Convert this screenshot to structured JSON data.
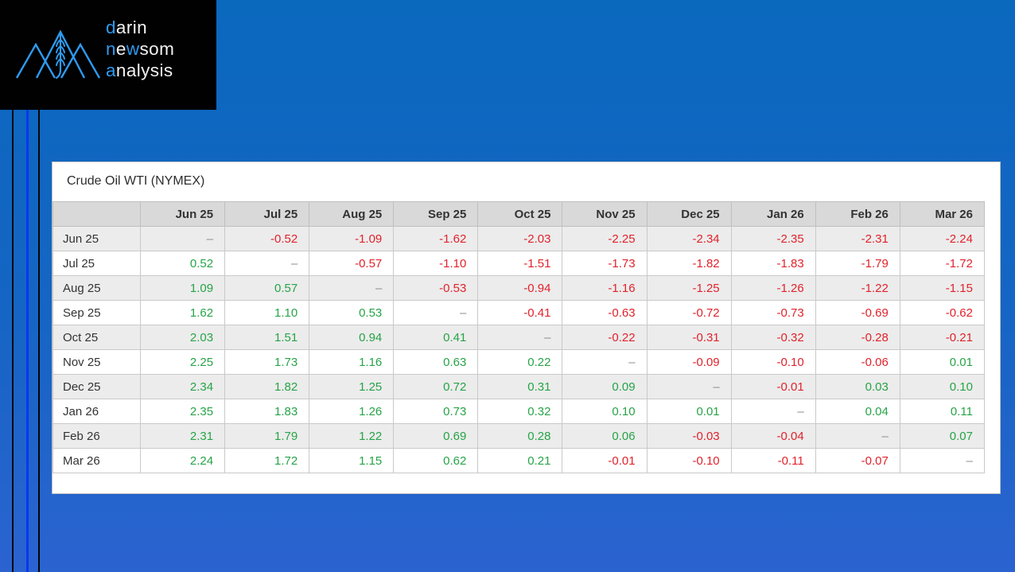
{
  "logo": {
    "line1": {
      "accent": "d",
      "rest": "arin"
    },
    "line2": {
      "p1": "n",
      "p2": "e",
      "p3": "w",
      "p4": "som"
    },
    "line3": {
      "accent": "a",
      "rest": "nalysis"
    }
  },
  "colors": {
    "logo_accent_blue": "#2e9bf1",
    "stripe_bright_blue": "#0838ef",
    "background_top": "#0a68bd",
    "background_bottom": "#2b63d0",
    "positive_value": "#26a447",
    "negative_value": "#e1222b",
    "dash_value": "#8c8c8c",
    "header_bg": "#d9d9d9",
    "alt_row_bg": "#ececec"
  },
  "table": {
    "title": "Crude Oil WTI (NYMEX)",
    "columns": [
      "Jun 25",
      "Jul 25",
      "Aug 25",
      "Sep 25",
      "Oct 25",
      "Nov 25",
      "Dec 25",
      "Jan 26",
      "Feb 26",
      "Mar 26"
    ],
    "rows": [
      {
        "label": "Jun 25",
        "values": [
          "–",
          "-0.52",
          "-1.09",
          "-1.62",
          "-2.03",
          "-2.25",
          "-2.34",
          "-2.35",
          "-2.31",
          "-2.24"
        ]
      },
      {
        "label": "Jul 25",
        "values": [
          "0.52",
          "–",
          "-0.57",
          "-1.10",
          "-1.51",
          "-1.73",
          "-1.82",
          "-1.83",
          "-1.79",
          "-1.72"
        ]
      },
      {
        "label": "Aug 25",
        "values": [
          "1.09",
          "0.57",
          "–",
          "-0.53",
          "-0.94",
          "-1.16",
          "-1.25",
          "-1.26",
          "-1.22",
          "-1.15"
        ]
      },
      {
        "label": "Sep 25",
        "values": [
          "1.62",
          "1.10",
          "0.53",
          "–",
          "-0.41",
          "-0.63",
          "-0.72",
          "-0.73",
          "-0.69",
          "-0.62"
        ]
      },
      {
        "label": "Oct 25",
        "values": [
          "2.03",
          "1.51",
          "0.94",
          "0.41",
          "–",
          "-0.22",
          "-0.31",
          "-0.32",
          "-0.28",
          "-0.21"
        ]
      },
      {
        "label": "Nov 25",
        "values": [
          "2.25",
          "1.73",
          "1.16",
          "0.63",
          "0.22",
          "–",
          "-0.09",
          "-0.10",
          "-0.06",
          "0.01"
        ]
      },
      {
        "label": "Dec 25",
        "values": [
          "2.34",
          "1.82",
          "1.25",
          "0.72",
          "0.31",
          "0.09",
          "–",
          "-0.01",
          "0.03",
          "0.10"
        ]
      },
      {
        "label": "Jan 26",
        "values": [
          "2.35",
          "1.83",
          "1.26",
          "0.73",
          "0.32",
          "0.10",
          "0.01",
          "–",
          "0.04",
          "0.11"
        ]
      },
      {
        "label": "Feb 26",
        "values": [
          "2.31",
          "1.79",
          "1.22",
          "0.69",
          "0.28",
          "0.06",
          "-0.03",
          "-0.04",
          "–",
          "0.07"
        ]
      },
      {
        "label": "Mar 26",
        "values": [
          "2.24",
          "1.72",
          "1.15",
          "0.62",
          "0.21",
          "-0.01",
          "-0.10",
          "-0.11",
          "-0.07",
          "–"
        ]
      }
    ]
  }
}
